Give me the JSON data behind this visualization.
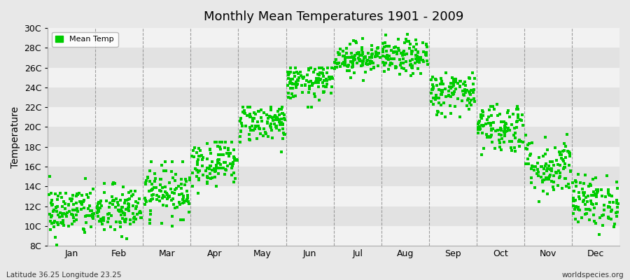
{
  "title": "Monthly Mean Temperatures 1901 - 2009",
  "ylabel": "Temperature",
  "ylim": [
    8,
    30
  ],
  "yticks": [
    8,
    10,
    12,
    14,
    16,
    18,
    20,
    22,
    24,
    26,
    28,
    30
  ],
  "ytick_labels": [
    "8C",
    "10C",
    "12C",
    "14C",
    "16C",
    "18C",
    "20C",
    "22C",
    "24C",
    "26C",
    "28C",
    "30C"
  ],
  "months": [
    "Jan",
    "Feb",
    "Mar",
    "Apr",
    "May",
    "Jun",
    "Jul",
    "Aug",
    "Sep",
    "Oct",
    "Nov",
    "Dec"
  ],
  "marker_color": "#00cc00",
  "bg_color": "#e8e8e8",
  "plot_bg_light": "#f2f2f2",
  "plot_bg_dark": "#e2e2e2",
  "legend_label": "Mean Temp",
  "subtitle_left": "Latitude 36.25 Longitude 23.25",
  "subtitle_right": "worldspecies.org",
  "monthly_mean": [
    11.5,
    11.5,
    13.5,
    16.5,
    20.5,
    24.5,
    27.0,
    27.0,
    23.5,
    20.0,
    16.0,
    12.5
  ],
  "monthly_std": [
    1.3,
    1.3,
    1.3,
    1.2,
    1.0,
    0.9,
    0.8,
    0.9,
    1.1,
    1.3,
    1.5,
    1.3
  ],
  "monthly_min": [
    8.0,
    7.5,
    10.0,
    13.0,
    17.5,
    22.0,
    24.5,
    24.0,
    20.0,
    17.0,
    12.5,
    8.5
  ],
  "monthly_max": [
    15.0,
    15.5,
    16.5,
    18.5,
    22.0,
    26.0,
    29.0,
    29.5,
    26.5,
    24.0,
    21.0,
    16.5
  ],
  "n_years": 109
}
